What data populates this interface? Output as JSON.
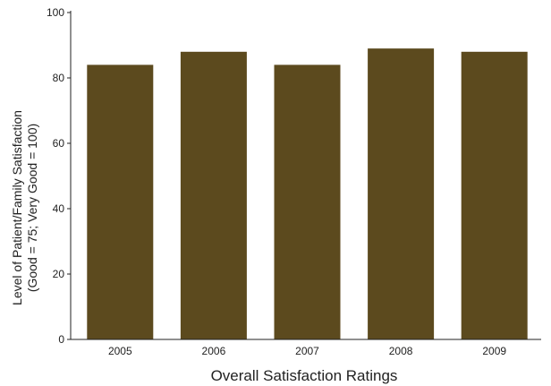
{
  "chart_data": {
    "type": "bar",
    "categories": [
      "2005",
      "2006",
      "2007",
      "2008",
      "2009"
    ],
    "values": [
      84,
      88,
      84,
      89,
      88
    ],
    "xlabel": "Overall Satisfaction Ratings",
    "ylabel_line1": "Level of Patient/Family Satisfaction",
    "ylabel_line2": "(Good = 75; Very Good = 100)",
    "ylim": [
      0,
      100
    ],
    "yticks": [
      "0",
      "20",
      "40",
      "60",
      "80",
      "100"
    ],
    "ytick_values": [
      0,
      20,
      40,
      60,
      80,
      100
    ],
    "grid": false,
    "bar_color": "#5c4a1e",
    "axis_color": "#222222"
  }
}
